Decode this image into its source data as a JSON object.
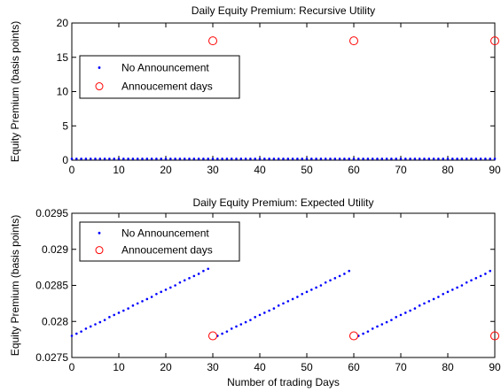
{
  "chart_data": [
    {
      "type": "scatter",
      "title": "Daily Equity Premium: Recursive Utility",
      "xlabel": "",
      "ylabel": "Equity Premium (basis points)",
      "xlim": [
        0,
        90
      ],
      "ylim": [
        0,
        20
      ],
      "xticks": [
        0,
        10,
        20,
        30,
        40,
        50,
        60,
        70,
        80,
        90
      ],
      "yticks": [
        0,
        5,
        10,
        15,
        20
      ],
      "grid": false,
      "legend_position": "upper-left",
      "series": [
        {
          "name": "No Announcement",
          "marker": "dot",
          "color": "#0000ff",
          "x": [
            0,
            1,
            2,
            3,
            4,
            5,
            6,
            7,
            8,
            9,
            10,
            11,
            12,
            13,
            14,
            15,
            16,
            17,
            18,
            19,
            20,
            21,
            22,
            23,
            24,
            25,
            26,
            27,
            28,
            29,
            30,
            31,
            32,
            33,
            34,
            35,
            36,
            37,
            38,
            39,
            40,
            41,
            42,
            43,
            44,
            45,
            46,
            47,
            48,
            49,
            50,
            51,
            52,
            53,
            54,
            55,
            56,
            57,
            58,
            59,
            60,
            61,
            62,
            63,
            64,
            65,
            66,
            67,
            68,
            69,
            70,
            71,
            72,
            73,
            74,
            75,
            76,
            77,
            78,
            79,
            80,
            81,
            82,
            83,
            84,
            85,
            86,
            87,
            88,
            89,
            90
          ],
          "y": [
            0.2,
            0.2,
            0.2,
            0.2,
            0.2,
            0.2,
            0.2,
            0.2,
            0.2,
            0.2,
            0.2,
            0.2,
            0.2,
            0.2,
            0.2,
            0.2,
            0.2,
            0.2,
            0.2,
            0.2,
            0.2,
            0.2,
            0.2,
            0.2,
            0.2,
            0.2,
            0.2,
            0.2,
            0.2,
            0.2,
            0.2,
            0.2,
            0.2,
            0.2,
            0.2,
            0.2,
            0.2,
            0.2,
            0.2,
            0.2,
            0.2,
            0.2,
            0.2,
            0.2,
            0.2,
            0.2,
            0.2,
            0.2,
            0.2,
            0.2,
            0.2,
            0.2,
            0.2,
            0.2,
            0.2,
            0.2,
            0.2,
            0.2,
            0.2,
            0.2,
            0.2,
            0.2,
            0.2,
            0.2,
            0.2,
            0.2,
            0.2,
            0.2,
            0.2,
            0.2,
            0.2,
            0.2,
            0.2,
            0.2,
            0.2,
            0.2,
            0.2,
            0.2,
            0.2,
            0.2,
            0.2,
            0.2,
            0.2,
            0.2,
            0.2,
            0.2,
            0.2,
            0.2,
            0.2,
            0.2,
            0.2
          ]
        },
        {
          "name": "Annoucement days",
          "marker": "circle",
          "color": "#ff0000",
          "x": [
            30,
            60,
            90
          ],
          "y": [
            17.4,
            17.4,
            17.4
          ]
        }
      ]
    },
    {
      "type": "scatter",
      "title": "Daily Equity Premium: Expected Utility",
      "xlabel": "Number of trading Days",
      "ylabel": "Equity Premium (basis points)",
      "xlim": [
        0,
        90
      ],
      "ylim": [
        0.0275,
        0.0295
      ],
      "xticks": [
        0,
        10,
        20,
        30,
        40,
        50,
        60,
        70,
        80,
        90
      ],
      "yticks": [
        0.0275,
        0.028,
        0.0285,
        0.029,
        0.0295
      ],
      "grid": false,
      "legend_position": "upper-left",
      "series": [
        {
          "name": "No Announcement",
          "marker": "dot",
          "color": "#0000ff",
          "x": [
            0,
            1,
            2,
            3,
            4,
            5,
            6,
            7,
            8,
            9,
            10,
            11,
            12,
            13,
            14,
            15,
            16,
            17,
            18,
            19,
            20,
            21,
            22,
            23,
            24,
            25,
            26,
            27,
            28,
            29,
            31,
            32,
            33,
            34,
            35,
            36,
            37,
            38,
            39,
            40,
            41,
            42,
            43,
            44,
            45,
            46,
            47,
            48,
            49,
            50,
            51,
            52,
            53,
            54,
            55,
            56,
            57,
            58,
            59,
            61,
            62,
            63,
            64,
            65,
            66,
            67,
            68,
            69,
            70,
            71,
            72,
            73,
            74,
            75,
            76,
            77,
            78,
            79,
            80,
            81,
            82,
            83,
            84,
            85,
            86,
            87,
            88,
            89
          ],
          "y": [
            0.0278,
            0.02783,
            0.02786,
            0.0279,
            0.02793,
            0.02796,
            0.02799,
            0.02802,
            0.02806,
            0.02809,
            0.02812,
            0.02815,
            0.02818,
            0.02822,
            0.02825,
            0.02828,
            0.02831,
            0.02834,
            0.02838,
            0.02841,
            0.02844,
            0.02847,
            0.0285,
            0.02854,
            0.02857,
            0.0286,
            0.02863,
            0.02866,
            0.0287,
            0.02873,
            0.0278,
            0.02783,
            0.02786,
            0.0279,
            0.02793,
            0.02796,
            0.02799,
            0.02802,
            0.02806,
            0.02809,
            0.02812,
            0.02815,
            0.02818,
            0.02822,
            0.02825,
            0.02828,
            0.02831,
            0.02834,
            0.02838,
            0.02841,
            0.02844,
            0.02847,
            0.0285,
            0.02854,
            0.02857,
            0.0286,
            0.02863,
            0.02866,
            0.0287,
            0.0278,
            0.02783,
            0.02786,
            0.0279,
            0.02793,
            0.02796,
            0.02799,
            0.02802,
            0.02806,
            0.02809,
            0.02812,
            0.02815,
            0.02818,
            0.02822,
            0.02825,
            0.02828,
            0.02831,
            0.02834,
            0.02838,
            0.02841,
            0.02844,
            0.02847,
            0.0285,
            0.02854,
            0.02857,
            0.0286,
            0.02863,
            0.02866,
            0.0287
          ]
        },
        {
          "name": "Annoucement days",
          "marker": "circle",
          "color": "#ff0000",
          "x": [
            30,
            60,
            90
          ],
          "y": [
            0.0278,
            0.0278,
            0.0278
          ]
        }
      ]
    }
  ]
}
